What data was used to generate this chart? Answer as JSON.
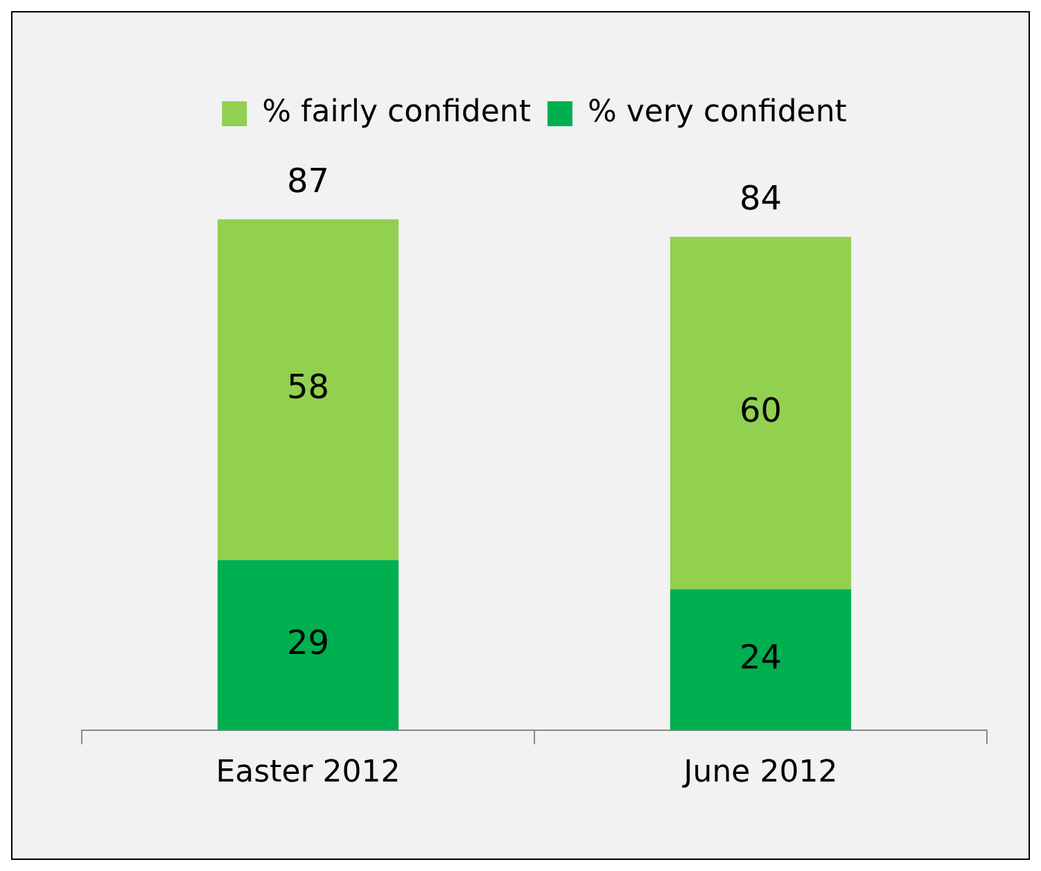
{
  "chart_data": {
    "type": "bar",
    "stacked": true,
    "categories": [
      "Easter 2012",
      "June 2012"
    ],
    "series": [
      {
        "name": "% very confident",
        "color": "#00b050",
        "values": [
          29,
          24
        ]
      },
      {
        "name": "% fairly confident",
        "color": "#92d050",
        "values": [
          58,
          60
        ]
      }
    ],
    "data_labels": true,
    "totals": [
      "87",
      "84"
    ],
    "legend": "top"
  }
}
